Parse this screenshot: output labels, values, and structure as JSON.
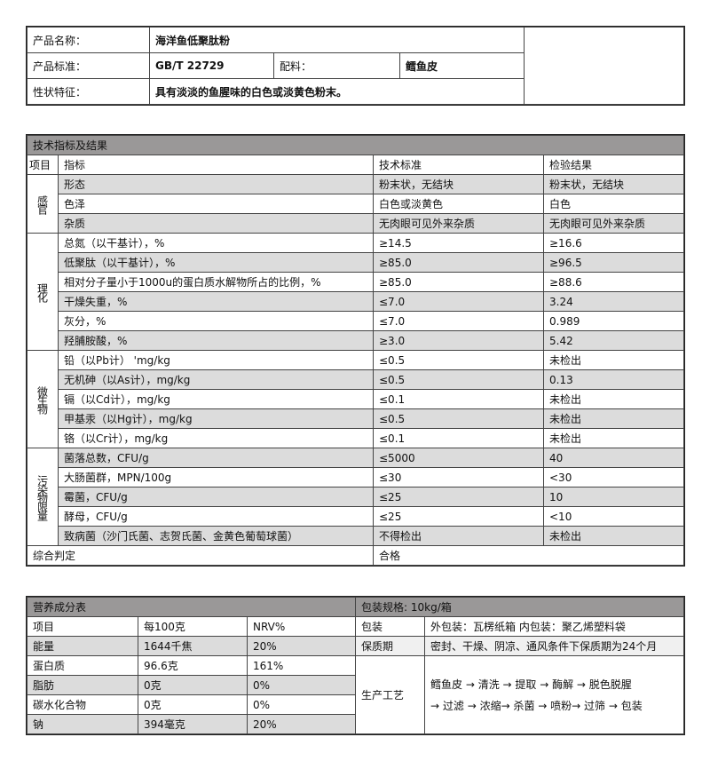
{
  "product": {
    "name_label": "产品名称：",
    "name_value": "海洋鱼低聚肽粉",
    "standard_label": "产品标准：",
    "standard_value": "GB/T 22729",
    "ingredient_label": "配料：",
    "ingredient_value": "鳕鱼皮",
    "character_label": "性状特征：",
    "character_value": "具有淡淡的鱼腥味的白色或淡黄色粉末。"
  },
  "tech": {
    "title": "技术指标及结果",
    "headers": [
      "项目",
      "指标",
      "技术标准",
      "检验结果"
    ],
    "groups": [
      {
        "category": "感官",
        "rows": [
          [
            "形态",
            "粉末状，无结块",
            "粉末状，无结块"
          ],
          [
            "色泽",
            "白色或淡黄色",
            "白色"
          ],
          [
            "杂质",
            "无肉眼可见外来杂质",
            "无肉眼可见外来杂质"
          ]
        ]
      },
      {
        "category": "理化",
        "rows": [
          [
            "总氮（以干基计），%",
            "≥14.5",
            "≥16.6"
          ],
          [
            "低聚肽（以干基计），%",
            "≥85.0",
            "≥96.5"
          ],
          [
            "相对分子量小于1000u的蛋白质水解物所占的比例，%",
            "≥85.0",
            "≥88.6"
          ],
          [
            "干燥失重，%",
            "≤7.0",
            "3.24"
          ],
          [
            "灰分，%",
            "≤7.0",
            "0.989"
          ],
          [
            "羟脯胺酸，%",
            "≥3.0",
            "5.42"
          ]
        ]
      },
      {
        "category": "微生物",
        "rows": [
          [
            "铅（以Pb计） 'mg/kg",
            "≤0.5",
            "未检出"
          ],
          [
            "无机砷（以As计），mg/kg",
            "≤0.5",
            "0.13"
          ],
          [
            "镉（以Cd计），mg/kg",
            "≤0.1",
            "未检出"
          ],
          [
            "甲基汞（以Hg计），mg/kg",
            "≤0.5",
            "未检出"
          ],
          [
            "铬（以Cr计），mg/kg",
            "≤0.1",
            "未检出"
          ]
        ]
      },
      {
        "category": "污染物限量",
        "rows": [
          [
            "菌落总数，CFU/g",
            "≤5000",
            "40"
          ],
          [
            "大肠菌群，MPN/100g",
            "≤30",
            "<30"
          ],
          [
            "霉菌，CFU/g",
            "≤25",
            "10"
          ],
          [
            "酵母，CFU/g",
            "≤25",
            "<10"
          ],
          [
            "致病菌（沙门氏菌、志贺氏菌、金黄色葡萄球菌）",
            "不得检出",
            "未检出"
          ]
        ]
      }
    ],
    "verdict_label": "综合判定",
    "verdict_value": "合格"
  },
  "nutrition": {
    "title": "营养成分表",
    "headers": [
      "项目",
      "每100克",
      "NRV%"
    ],
    "rows": [
      [
        "能量",
        "1644千焦",
        "20%"
      ],
      [
        "蛋白质",
        "96.6克",
        "161%"
      ],
      [
        "脂肪",
        "0克",
        "0%"
      ],
      [
        "碳水化合物",
        "0克",
        "0%"
      ],
      [
        "钠",
        "394毫克",
        "20%"
      ]
    ]
  },
  "packaging": {
    "spec": "包装规格:   10kg/箱",
    "pack_label": "包装",
    "pack_value": "外包装：瓦楞纸箱      内包装：聚乙烯塑料袋",
    "shelf_label": "保质期",
    "shelf_value": "密封、干燥、阴凉、通风条件下保质期为24个月",
    "process_label": "生产工艺",
    "process_line1": "鳕鱼皮 → 清洗 → 提取 → 酶解 → 脱色脱腥",
    "process_line2": "→ 过滤 → 浓缩→ 杀菌 → 喷粉→ 过筛 → 包装"
  }
}
